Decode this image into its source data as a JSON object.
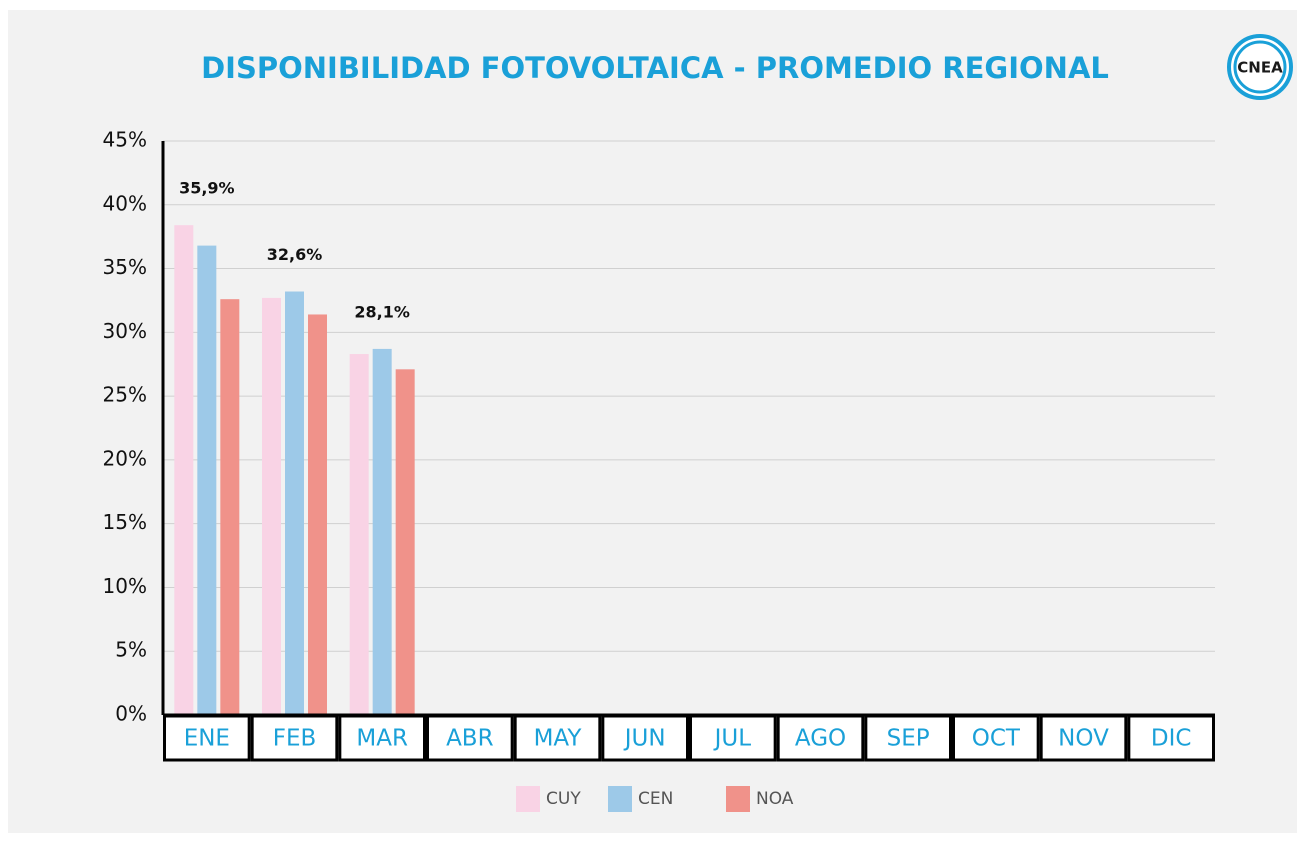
{
  "chart_data": {
    "type": "bar",
    "title": "DISPONIBILIDAD FOTOVOLTAICA - PROMEDIO REGIONAL",
    "logo": "CNEA",
    "categories": [
      "ENE",
      "FEB",
      "MAR",
      "ABR",
      "MAY",
      "JUN",
      "JUL",
      "AGO",
      "SEP",
      "OCT",
      "NOV",
      "DIC"
    ],
    "series": [
      {
        "name": "CUY",
        "color": "#f9d3e5",
        "values": [
          38.4,
          32.7,
          28.3,
          null,
          null,
          null,
          null,
          null,
          null,
          null,
          null,
          null
        ]
      },
      {
        "name": "CEN",
        "color": "#9dc9e8",
        "values": [
          36.8,
          33.2,
          28.7,
          null,
          null,
          null,
          null,
          null,
          null,
          null,
          null,
          null
        ]
      },
      {
        "name": "NOA",
        "color": "#f0928a",
        "values": [
          32.6,
          31.4,
          27.1,
          null,
          null,
          null,
          null,
          null,
          null,
          null,
          null,
          null
        ]
      }
    ],
    "average_labels": {
      "values": [
        35.9,
        32.6,
        28.1,
        null,
        null,
        null,
        null,
        null,
        null,
        null,
        null,
        null
      ],
      "value_labels": [
        "35,9%",
        "32,6%",
        "28,1%",
        null,
        null,
        null,
        null,
        null,
        null,
        null,
        null,
        null
      ]
    },
    "ylim": [
      0,
      45
    ],
    "yticks": [
      {
        "value": 0,
        "label": "0%"
      },
      {
        "value": 5,
        "label": "5%"
      },
      {
        "value": 10,
        "label": "10%"
      },
      {
        "value": 15,
        "label": "15%"
      },
      {
        "value": 20,
        "label": "20%"
      },
      {
        "value": 25,
        "label": "25%"
      },
      {
        "value": 30,
        "label": "30%"
      },
      {
        "value": 35,
        "label": "35%"
      },
      {
        "value": 40,
        "label": "40%"
      },
      {
        "value": 45,
        "label": "45%"
      }
    ],
    "grid": true,
    "legend": "bottom"
  }
}
